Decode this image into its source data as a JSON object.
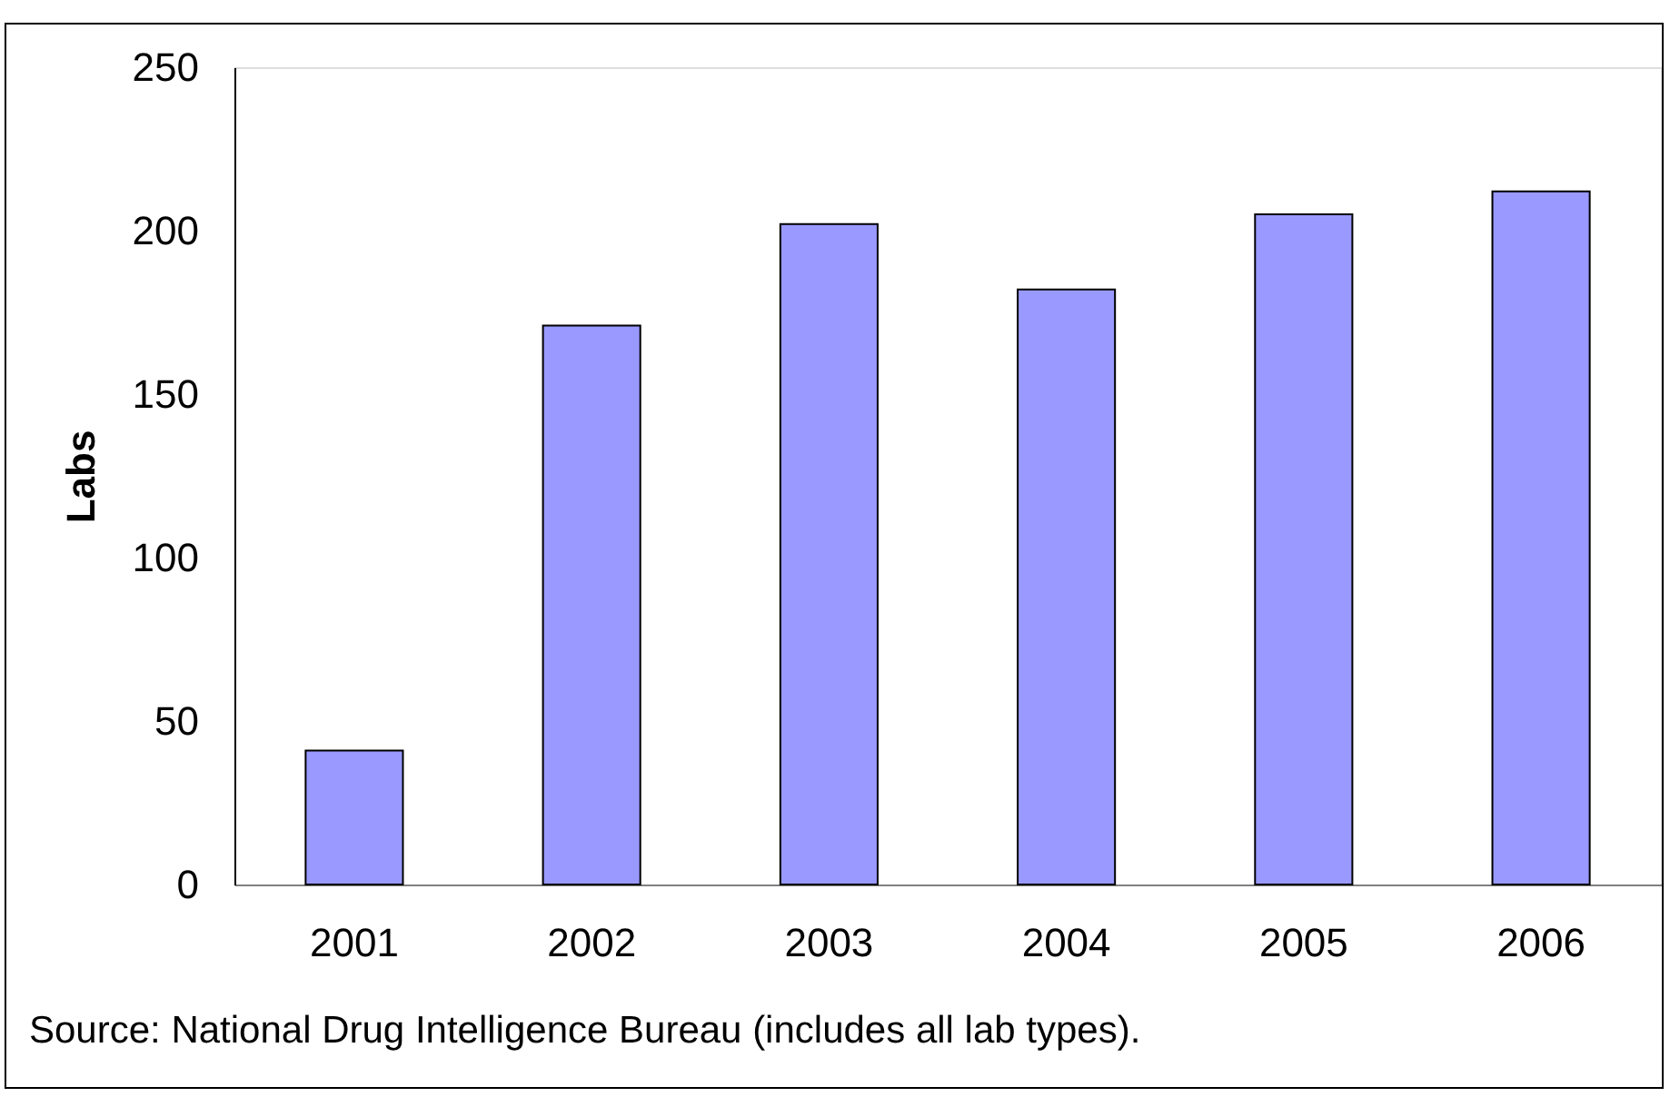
{
  "chart_data": {
    "type": "bar",
    "ylabel": "Labs",
    "categories": [
      "2001",
      "2002",
      "2003",
      "2004",
      "2005",
      "2006"
    ],
    "values": [
      41,
      171,
      202,
      182,
      205,
      212
    ],
    "color": "#9999ff",
    "ylim": [
      0,
      250
    ],
    "yticks": [
      0,
      50,
      100,
      150,
      200,
      250
    ],
    "grid": false,
    "annotations": [
      "Source: National Drug Intelligence Bureau (includes all lab types)."
    ]
  }
}
